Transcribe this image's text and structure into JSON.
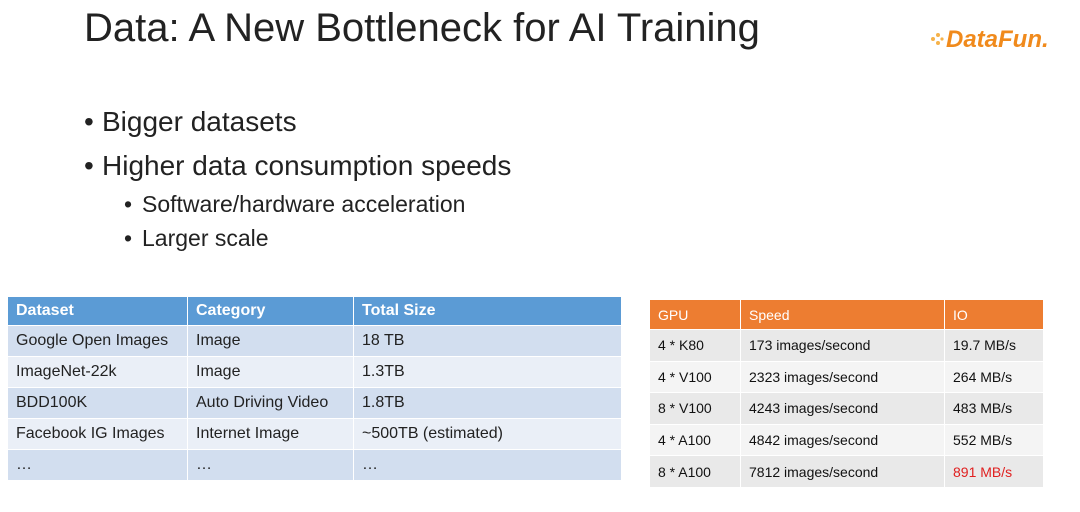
{
  "header": {
    "title": "Data: A New Bottleneck for AI Training",
    "logo": "DataFun."
  },
  "bullets": [
    {
      "text": "Bigger datasets",
      "children": []
    },
    {
      "text": "Higher data consumption speeds",
      "children": [
        "Software/hardware acceleration",
        "Larger scale"
      ]
    }
  ],
  "dataset_table": {
    "columns": [
      "Dataset",
      "Category",
      "Total Size"
    ],
    "rows": [
      [
        "Google Open Images",
        "Image",
        "18 TB"
      ],
      [
        "ImageNet-22k",
        "Image",
        "1.3TB"
      ],
      [
        "BDD100K",
        "Auto Driving Video",
        "1.8TB"
      ],
      [
        "Facebook IG Images",
        "Internet Image",
        "~500TB (estimated)"
      ],
      [
        "…",
        "…",
        "…"
      ]
    ]
  },
  "gpu_table": {
    "columns": [
      "GPU",
      "Speed",
      "IO"
    ],
    "rows": [
      [
        "4 * K80",
        "173 images/second",
        "19.7 MB/s"
      ],
      [
        "4 * V100",
        "2323 images/second",
        "264 MB/s"
      ],
      [
        "8 * V100",
        "4243 images/second",
        "483 MB/s"
      ],
      [
        "4 * A100",
        "4842 images/second",
        "552 MB/s"
      ],
      [
        "8 * A100",
        "7812 images/second",
        "891 MB/s"
      ]
    ]
  }
}
